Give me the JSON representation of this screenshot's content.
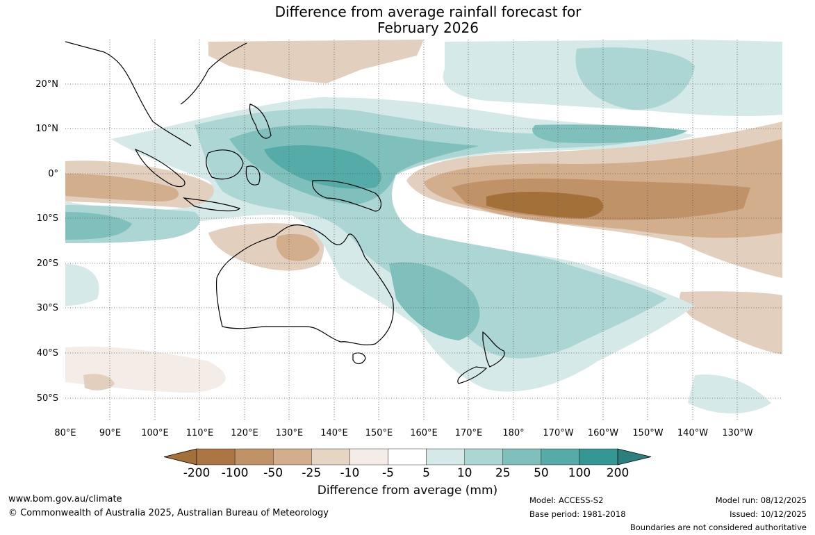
{
  "title": {
    "line1": "Difference from average rainfall forecast for",
    "line2": "February 2026"
  },
  "map": {
    "lat_labels": [
      "20°N",
      "10°N",
      "0°",
      "10°S",
      "20°S",
      "30°S",
      "40°S",
      "50°S"
    ],
    "lon_labels": [
      "80°E",
      "90°E",
      "100°E",
      "110°E",
      "120°E",
      "130°E",
      "140°E",
      "150°E",
      "160°E",
      "170°E",
      "180°",
      "170°W",
      "160°W",
      "150°W",
      "140°W",
      "130°W"
    ],
    "gridlines": true,
    "gridline_style": "dotted"
  },
  "colorbar": {
    "title": "Difference from average (mm)",
    "ticks": [
      "-200",
      "-100",
      "-50",
      "-25",
      "-10",
      "-5",
      "5",
      "10",
      "25",
      "50",
      "100",
      "200"
    ],
    "colors": [
      "#a4703a",
      "#ab7644",
      "#c09268",
      "#d2ae8d",
      "#e7d5c4",
      "#f4ede7",
      "#ffffff",
      "#d5e9e8",
      "#acd6d3",
      "#80c0bc",
      "#55aba7",
      "#359794",
      "#2c7f7c"
    ],
    "extends": "both"
  },
  "footer": {
    "url": "www.bom.gov.au/climate",
    "copyright": "© Commonwealth of Australia 2025, Australian Bureau of Meteorology",
    "model": "Model: ACCESS-S2",
    "base_period": "Base period: 1981-2018",
    "model_run": "Model run: 08/12/2025",
    "issued": "Issued: 10/12/2025",
    "disclaimer": "Boundaries are not considered authoritative"
  }
}
